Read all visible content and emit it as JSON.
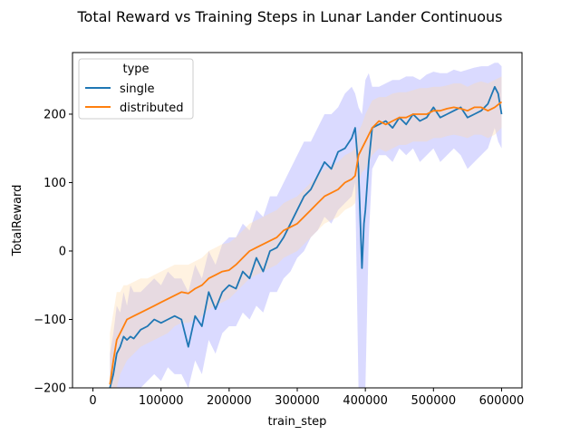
{
  "chart_data": {
    "type": "line",
    "title": "Total Reward vs Training Steps in Lunar Lander Continuous",
    "xlabel": "train_step",
    "ylabel": "TotalReward",
    "xlim": [
      -30000,
      630000
    ],
    "ylim": [
      -200,
      290
    ],
    "xticks": [
      0,
      100000,
      200000,
      300000,
      400000,
      500000,
      600000
    ],
    "xtick_labels": [
      "0",
      "100000",
      "200000",
      "300000",
      "400000",
      "500000",
      "600000"
    ],
    "yticks": [
      -200,
      -100,
      0,
      100,
      200
    ],
    "ytick_labels": [
      "−200",
      "−100",
      "0",
      "100",
      "200"
    ],
    "grid": false,
    "legend": {
      "title": "type",
      "position": "top-left"
    },
    "series": [
      {
        "name": "single",
        "color": "#1f77b4",
        "band_color": "#7a7aff",
        "x": [
          25000,
          30000,
          35000,
          40000,
          45000,
          50000,
          55000,
          60000,
          70000,
          80000,
          90000,
          100000,
          110000,
          120000,
          130000,
          140000,
          150000,
          160000,
          170000,
          180000,
          190000,
          200000,
          210000,
          220000,
          230000,
          240000,
          250000,
          260000,
          270000,
          280000,
          290000,
          300000,
          310000,
          320000,
          330000,
          340000,
          350000,
          360000,
          370000,
          380000,
          385000,
          390000,
          395000,
          398000,
          400000,
          405000,
          410000,
          420000,
          430000,
          440000,
          450000,
          460000,
          470000,
          480000,
          490000,
          500000,
          510000,
          520000,
          530000,
          540000,
          550000,
          560000,
          570000,
          580000,
          590000,
          595000,
          600000
        ],
        "y": [
          -200,
          -180,
          -150,
          -140,
          -125,
          -130,
          -125,
          -128,
          -115,
          -110,
          -100,
          -105,
          -100,
          -95,
          -100,
          -140,
          -95,
          -110,
          -60,
          -85,
          -60,
          -50,
          -55,
          -30,
          -40,
          -10,
          -30,
          0,
          5,
          20,
          40,
          60,
          80,
          90,
          110,
          130,
          120,
          145,
          150,
          165,
          180,
          120,
          -25,
          40,
          60,
          130,
          180,
          185,
          190,
          180,
          195,
          185,
          200,
          190,
          195,
          210,
          195,
          200,
          205,
          210,
          195,
          200,
          205,
          215,
          240,
          230,
          200
        ],
        "upper": [
          -150,
          -120,
          -80,
          -90,
          -60,
          -80,
          -50,
          -60,
          -60,
          -50,
          -40,
          -50,
          -30,
          -40,
          -40,
          -60,
          -20,
          -40,
          0,
          -20,
          10,
          20,
          20,
          40,
          30,
          60,
          50,
          80,
          80,
          100,
          120,
          140,
          160,
          160,
          180,
          200,
          200,
          210,
          230,
          240,
          230,
          210,
          200,
          230,
          250,
          260,
          240,
          240,
          245,
          250,
          250,
          255,
          255,
          250,
          258,
          262,
          260,
          260,
          265,
          262,
          265,
          268,
          270,
          270,
          275,
          275,
          270
        ],
        "lower": [
          -200,
          -200,
          -200,
          -200,
          -200,
          -200,
          -200,
          -200,
          -200,
          -190,
          -180,
          -190,
          -170,
          -180,
          -180,
          -200,
          -160,
          -180,
          -130,
          -150,
          -120,
          -110,
          -110,
          -90,
          -100,
          -80,
          -90,
          -60,
          -60,
          -40,
          -30,
          -10,
          0,
          20,
          30,
          50,
          40,
          60,
          70,
          80,
          100,
          -200,
          -200,
          -200,
          -200,
          20,
          120,
          140,
          140,
          130,
          150,
          140,
          150,
          130,
          140,
          150,
          130,
          140,
          150,
          140,
          120,
          130,
          140,
          150,
          180,
          160,
          150
        ]
      },
      {
        "name": "distributed",
        "color": "#ff7f0e",
        "band_color": "#ffd9a8",
        "x": [
          25000,
          30000,
          35000,
          40000,
          45000,
          50000,
          60000,
          70000,
          80000,
          90000,
          100000,
          110000,
          120000,
          130000,
          140000,
          150000,
          160000,
          170000,
          180000,
          190000,
          200000,
          210000,
          220000,
          230000,
          240000,
          250000,
          260000,
          270000,
          280000,
          290000,
          300000,
          310000,
          320000,
          330000,
          340000,
          350000,
          360000,
          370000,
          380000,
          385000,
          390000,
          395000,
          400000,
          410000,
          420000,
          430000,
          440000,
          450000,
          460000,
          470000,
          480000,
          490000,
          500000,
          510000,
          520000,
          530000,
          540000,
          550000,
          560000,
          570000,
          580000,
          590000,
          600000
        ],
        "y": [
          -195,
          -160,
          -130,
          -120,
          -110,
          -100,
          -95,
          -90,
          -85,
          -80,
          -75,
          -70,
          -65,
          -60,
          -62,
          -55,
          -50,
          -40,
          -35,
          -30,
          -28,
          -20,
          -10,
          0,
          5,
          10,
          15,
          20,
          30,
          35,
          40,
          50,
          60,
          70,
          80,
          85,
          90,
          100,
          105,
          110,
          140,
          150,
          160,
          180,
          190,
          185,
          190,
          195,
          195,
          200,
          200,
          200,
          205,
          205,
          208,
          210,
          208,
          205,
          210,
          210,
          205,
          210,
          218
        ],
        "upper": [
          -120,
          -90,
          -60,
          -60,
          -50,
          -50,
          -45,
          -40,
          -40,
          -35,
          -30,
          -25,
          -20,
          -20,
          -20,
          -15,
          -10,
          0,
          5,
          10,
          12,
          20,
          30,
          40,
          45,
          50,
          55,
          60,
          70,
          75,
          80,
          90,
          100,
          110,
          120,
          125,
          130,
          140,
          145,
          150,
          175,
          185,
          200,
          220,
          225,
          225,
          230,
          232,
          232,
          235,
          238,
          238,
          240,
          240,
          242,
          245,
          245,
          240,
          245,
          248,
          245,
          250,
          255
        ],
        "lower": [
          -200,
          -200,
          -200,
          -180,
          -170,
          -160,
          -150,
          -140,
          -135,
          -130,
          -125,
          -120,
          -110,
          -105,
          -105,
          -100,
          -95,
          -85,
          -80,
          -75,
          -70,
          -60,
          -50,
          -40,
          -35,
          -30,
          -25,
          -20,
          -10,
          -5,
          0,
          10,
          20,
          30,
          40,
          45,
          50,
          60,
          65,
          70,
          100,
          115,
          120,
          140,
          150,
          145,
          150,
          155,
          155,
          160,
          160,
          160,
          165,
          165,
          168,
          170,
          168,
          165,
          170,
          170,
          165,
          170,
          180
        ]
      }
    ]
  }
}
